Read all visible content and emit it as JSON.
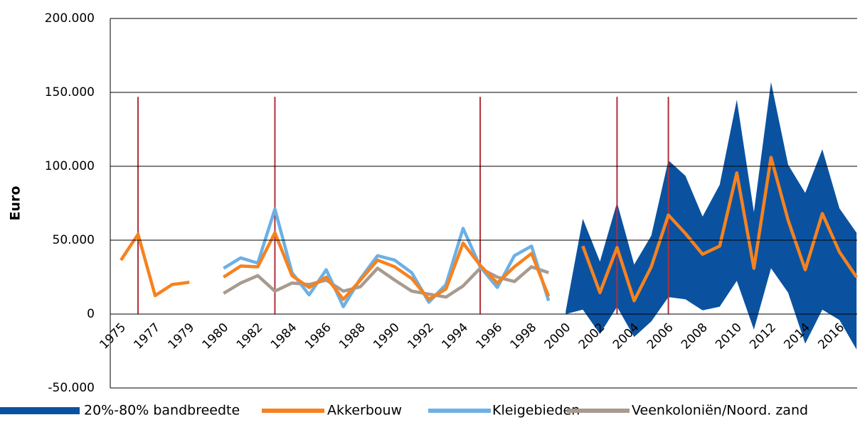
{
  "chart_data": {
    "type": "line",
    "y_label": "Euro",
    "categories": [
      "1975",
      null,
      "1977",
      null,
      "1979",
      null,
      "1980",
      null,
      "1982",
      null,
      "1984",
      null,
      "1986",
      null,
      "1988",
      null,
      "1990",
      null,
      "1992",
      null,
      "1994",
      null,
      "1996",
      null,
      "1998",
      null,
      "2000",
      null,
      "2002",
      null,
      "2004",
      null,
      "2006",
      null,
      "2008",
      null,
      "2010",
      null,
      "2012",
      null,
      "2014",
      null,
      "2016",
      null
    ],
    "ylim": [
      -50000,
      200000
    ],
    "yticks": [
      {
        "value": -50000,
        "label": "-50.000"
      },
      0,
      {
        "value": 50000,
        "label": "50.000"
      },
      {
        "value": 100000,
        "label": "100.000"
      },
      {
        "value": 150000,
        "label": "150.000"
      },
      {
        "value": 200000,
        "label": "200.000"
      }
    ],
    "grid": true,
    "legend": "bottom",
    "reference_lines": {
      "color": "#b0303a",
      "at": [
        1,
        9,
        21,
        29,
        32
      ],
      "top": 147000
    },
    "series": [
      {
        "name": "20%-80% bandbreedte",
        "type": "band",
        "color": "#0a52a0",
        "high": [
          null,
          null,
          null,
          null,
          null,
          null,
          null,
          null,
          null,
          null,
          null,
          null,
          null,
          null,
          null,
          null,
          null,
          null,
          null,
          null,
          null,
          null,
          null,
          null,
          null,
          null,
          2000,
          64500,
          35500,
          75500,
          33500,
          53000,
          104000,
          93500,
          66000,
          87500,
          145000,
          69000,
          157000,
          101000,
          82000,
          111500,
          71500,
          55000
        ],
        "low": [
          null,
          null,
          null,
          null,
          null,
          null,
          null,
          null,
          null,
          null,
          null,
          null,
          null,
          null,
          null,
          null,
          null,
          null,
          null,
          null,
          null,
          null,
          null,
          null,
          null,
          null,
          0,
          3000,
          -13500,
          5000,
          -15500,
          -5000,
          11500,
          10000,
          2500,
          5000,
          22500,
          -10500,
          31000,
          14500,
          -20000,
          3000,
          -4000,
          -24000
        ]
      },
      {
        "name": "Akkerbouw",
        "color": "#f6821f",
        "values": [
          36500,
          54000,
          12500,
          20000,
          21500,
          null,
          25000,
          32500,
          32000,
          55000,
          26000,
          18000,
          25000,
          10000,
          23000,
          36500,
          32000,
          24000,
          10000,
          17000,
          48000,
          33000,
          21000,
          32000,
          41000,
          12000,
          null,
          46000,
          14500,
          45000,
          9000,
          32000,
          67000,
          54500,
          40500,
          46000,
          95500,
          31000,
          106000,
          63500,
          30000,
          68000,
          42000,
          25000
        ]
      },
      {
        "name": "Kleigebieden",
        "color": "#6cb0e6",
        "values": [
          null,
          null,
          null,
          null,
          null,
          null,
          31000,
          38000,
          34500,
          71000,
          28000,
          13000,
          30000,
          5000,
          24000,
          39500,
          36500,
          28000,
          8000,
          20000,
          58000,
          32000,
          18000,
          39500,
          46000,
          9000,
          null,
          null,
          null,
          null,
          null,
          null,
          null,
          null,
          null,
          null,
          null,
          null,
          null,
          null,
          null,
          null,
          null,
          null
        ]
      },
      {
        "name": "Veenkoloniën/Noord. zand",
        "color": "#a89a8e",
        "values": [
          null,
          null,
          null,
          null,
          null,
          null,
          14000,
          21000,
          26000,
          15500,
          21000,
          20000,
          23000,
          15500,
          18500,
          31000,
          23000,
          15500,
          13500,
          11500,
          19000,
          31000,
          25000,
          22000,
          32000,
          28000,
          null,
          null,
          null,
          null,
          null,
          null,
          null,
          null,
          null,
          null,
          null,
          null,
          null,
          null,
          null,
          null,
          null,
          null
        ]
      }
    ]
  }
}
